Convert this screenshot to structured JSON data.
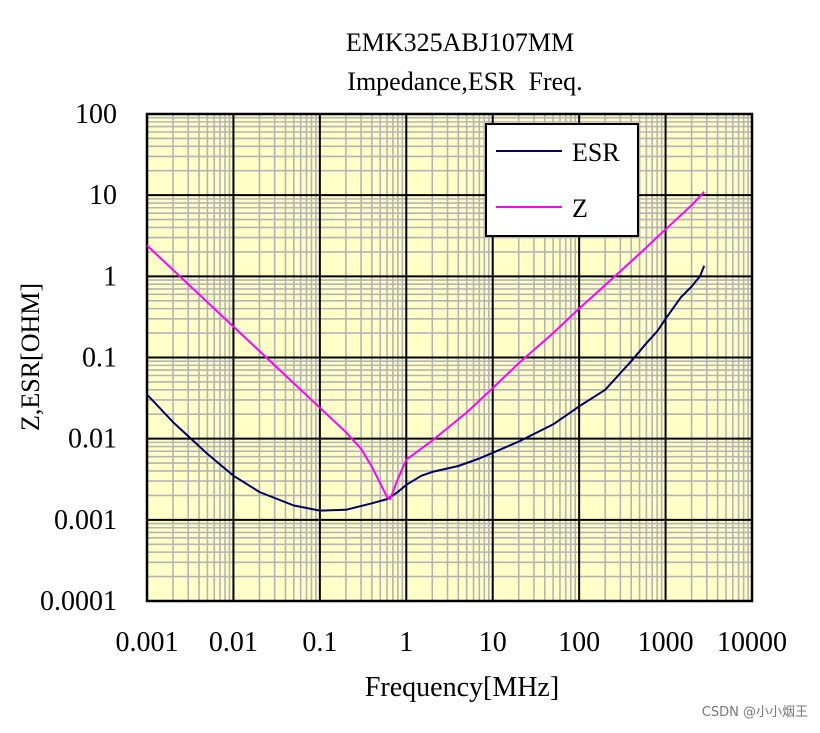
{
  "chart_data": {
    "type": "line",
    "title": "EMK325ABJ107MM",
    "subtitle": "Impedance,ESR  Freq.",
    "xlabel": "Frequency[MHz]",
    "ylabel": "Z,ESR[OHM]",
    "x_scale": "log",
    "y_scale": "log",
    "xlim": [
      0.001,
      10000
    ],
    "ylim": [
      0.0001,
      100
    ],
    "x_ticks": [
      "0.001",
      "0.01",
      "0.1",
      "1",
      "10",
      "100",
      "1000",
      "10000"
    ],
    "y_ticks": [
      "0.0001",
      "0.001",
      "0.01",
      "0.1",
      "1",
      "10",
      "100"
    ],
    "grid": true,
    "legend_position": "top-right",
    "colors": {
      "plot_background": "#ffffc8",
      "minor_grid": "#b4b4b4",
      "major_grid": "#000000"
    },
    "series": [
      {
        "name": "ESR",
        "color": "#000066",
        "points": [
          [
            0.001,
            0.035
          ],
          [
            0.002,
            0.016
          ],
          [
            0.005,
            0.0065
          ],
          [
            0.01,
            0.0035
          ],
          [
            0.02,
            0.0022
          ],
          [
            0.05,
            0.0015
          ],
          [
            0.1,
            0.0013
          ],
          [
            0.2,
            0.00133
          ],
          [
            0.4,
            0.0016
          ],
          [
            0.6,
            0.0018
          ],
          [
            0.8,
            0.0022
          ],
          [
            1,
            0.0027
          ],
          [
            1.5,
            0.0035
          ],
          [
            2,
            0.0039
          ],
          [
            4,
            0.0046
          ],
          [
            7,
            0.0057
          ],
          [
            10,
            0.0067
          ],
          [
            20,
            0.0092
          ],
          [
            50,
            0.015
          ],
          [
            100,
            0.025
          ],
          [
            200,
            0.04
          ],
          [
            400,
            0.09
          ],
          [
            600,
            0.15
          ],
          [
            800,
            0.21
          ],
          [
            1000,
            0.3
          ],
          [
            1500,
            0.55
          ],
          [
            2000,
            0.75
          ],
          [
            2500,
            1.0
          ],
          [
            2800,
            1.35
          ]
        ]
      },
      {
        "name": "Z",
        "color": "#ff00ff",
        "points": [
          [
            0.001,
            2.4
          ],
          [
            0.003,
            0.8
          ],
          [
            0.01,
            0.24
          ],
          [
            0.03,
            0.08
          ],
          [
            0.1,
            0.024
          ],
          [
            0.2,
            0.012
          ],
          [
            0.3,
            0.0075
          ],
          [
            0.4,
            0.0045
          ],
          [
            0.5,
            0.0028
          ],
          [
            0.6,
            0.0019
          ],
          [
            0.65,
            0.0018
          ],
          [
            0.8,
            0.0032
          ],
          [
            1,
            0.0055
          ],
          [
            2,
            0.0095
          ],
          [
            5,
            0.021
          ],
          [
            10,
            0.042
          ],
          [
            20,
            0.085
          ],
          [
            50,
            0.2
          ],
          [
            100,
            0.4
          ],
          [
            200,
            0.78
          ],
          [
            500,
            1.9
          ],
          [
            1000,
            3.8
          ],
          [
            2000,
            7.5
          ],
          [
            2800,
            11
          ]
        ]
      }
    ]
  },
  "watermark": "CSDN @小小烟王"
}
